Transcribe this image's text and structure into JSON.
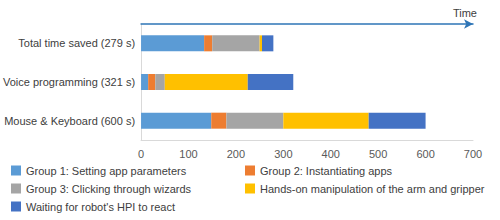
{
  "chart_data": {
    "type": "bar",
    "orientation": "horizontal",
    "stacked": true,
    "x_label": "Time",
    "categories": [
      "Total time saved (279 s)",
      "Voice programming (321 s)",
      "Mouse & Keyboard (600 s)"
    ],
    "series": [
      {
        "name": "Group 1: Setting app parameters",
        "color": "#5b9bd5",
        "values": [
          133,
          15,
          148
        ]
      },
      {
        "name": "Group 2: Instantiating apps",
        "color": "#ed7d31",
        "values": [
          17,
          15,
          32
        ]
      },
      {
        "name": "Group 3: Clicking through wizards",
        "color": "#a5a5a5",
        "values": [
          100,
          20,
          120
        ]
      },
      {
        "name": "Hands-on manipulation of the arm and gripper",
        "color": "#ffc000",
        "values": [
          5,
          175,
          180
        ]
      },
      {
        "name": "Waiting for robot's HPI to react",
        "color": "#4472c4",
        "values": [
          24,
          96,
          120
        ]
      }
    ],
    "xlim": [
      0,
      700
    ],
    "xticks": [
      0,
      100,
      200,
      300,
      400,
      500,
      600,
      700
    ],
    "grid": false,
    "legend": "bottom"
  }
}
